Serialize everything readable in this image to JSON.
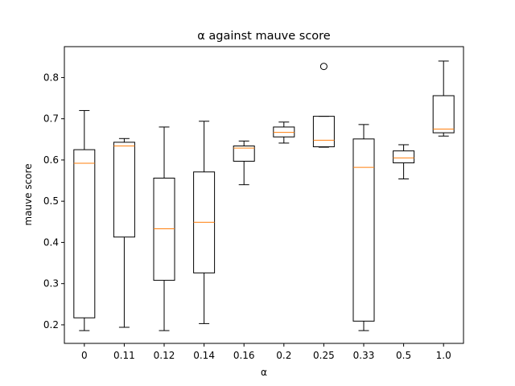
{
  "chart_data": {
    "type": "box",
    "title": "α against mauve score",
    "xlabel": "α",
    "ylabel": "mauve score",
    "ylim": [
      0.155,
      0.875
    ],
    "yticks": [
      0.2,
      0.3,
      0.4,
      0.5,
      0.6,
      0.7,
      0.8
    ],
    "ytick_labels": [
      "0.2",
      "0.3",
      "0.4",
      "0.5",
      "0.6",
      "0.7",
      "0.8"
    ],
    "grid": false,
    "categories": [
      "0",
      "0.11",
      "0.12",
      "0.14",
      "0.16",
      "0.2",
      "0.25",
      "0.33",
      "0.5",
      "1.0"
    ],
    "boxes": [
      {
        "category": "0",
        "whisker_low": 0.186,
        "q1": 0.217,
        "median": 0.592,
        "q3": 0.625,
        "whisker_high": 0.72,
        "outliers": []
      },
      {
        "category": "0.11",
        "whisker_low": 0.194,
        "q1": 0.413,
        "median": 0.634,
        "q3": 0.643,
        "whisker_high": 0.652,
        "outliers": []
      },
      {
        "category": "0.12",
        "whisker_low": 0.186,
        "q1": 0.308,
        "median": 0.433,
        "q3": 0.556,
        "whisker_high": 0.68,
        "outliers": []
      },
      {
        "category": "0.14",
        "whisker_low": 0.203,
        "q1": 0.326,
        "median": 0.449,
        "q3": 0.571,
        "whisker_high": 0.694,
        "outliers": []
      },
      {
        "category": "0.16",
        "whisker_low": 0.54,
        "q1": 0.597,
        "median": 0.629,
        "q3": 0.634,
        "whisker_high": 0.646,
        "outliers": []
      },
      {
        "category": "0.2",
        "whisker_low": 0.641,
        "q1": 0.656,
        "median": 0.667,
        "q3": 0.68,
        "whisker_high": 0.692,
        "outliers": []
      },
      {
        "category": "0.25",
        "whisker_low": 0.631,
        "q1": 0.632,
        "median": 0.648,
        "q3": 0.706,
        "whisker_high": 0.706,
        "outliers": [
          0.827
        ]
      },
      {
        "category": "0.33",
        "whisker_low": 0.186,
        "q1": 0.209,
        "median": 0.582,
        "q3": 0.651,
        "whisker_high": 0.686,
        "outliers": []
      },
      {
        "category": "0.5",
        "whisker_low": 0.554,
        "q1": 0.593,
        "median": 0.605,
        "q3": 0.622,
        "whisker_high": 0.637,
        "outliers": []
      },
      {
        "category": "1.0",
        "whisker_low": 0.658,
        "q1": 0.666,
        "median": 0.675,
        "q3": 0.756,
        "whisker_high": 0.84,
        "outliers": []
      }
    ],
    "colors": {
      "box": "#000000",
      "median": "#ff7f0e",
      "outlier": "#000000",
      "background": "#ffffff"
    }
  }
}
